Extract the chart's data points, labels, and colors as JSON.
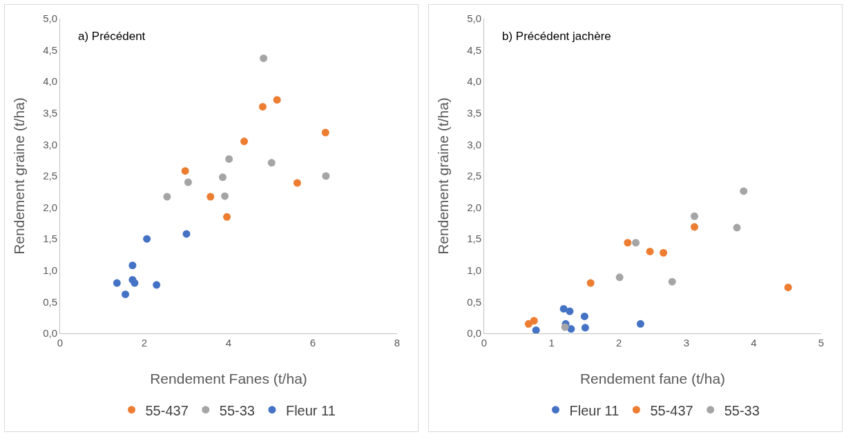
{
  "chart_data": [
    {
      "type": "scatter",
      "title": "a) Précédent",
      "xlabel": "Rendement Fanes (t/ha)",
      "ylabel": "Rendement graine (t/ha)",
      "xlim": [
        0,
        8
      ],
      "xticks": [
        0,
        2,
        4,
        6,
        8
      ],
      "ylim": [
        0,
        5
      ],
      "yticks": [
        {
          "value": 0,
          "label": "0,0"
        },
        {
          "value": 0.5,
          "label": "0,5"
        },
        {
          "value": 1,
          "label": "1,0"
        },
        {
          "value": 1.5,
          "label": "1,5"
        },
        {
          "value": 2,
          "label": "2,0"
        },
        {
          "value": 2.5,
          "label": "2,5"
        },
        {
          "value": 3,
          "label": "3,0"
        },
        {
          "value": 3.5,
          "label": "3,5"
        },
        {
          "value": 4,
          "label": "4,0"
        },
        {
          "value": 4.5,
          "label": "4,5"
        },
        {
          "value": 5,
          "label": "5,0"
        }
      ],
      "grid": false,
      "legend": "bottom",
      "marker": "circle",
      "series": [
        {
          "name": "55-437",
          "color": "#ed7d31",
          "x": [
            2.97,
            3.57,
            3.96,
            4.37,
            4.81,
            5.15,
            5.63,
            6.3
          ],
          "values": [
            2.58,
            2.17,
            1.85,
            3.05,
            3.6,
            3.71,
            2.39,
            3.19
          ]
        },
        {
          "name": "55-33",
          "color": "#a5a5a5",
          "x": [
            2.54,
            3.04,
            3.86,
            4.01,
            3.91,
            4.83,
            5.02,
            6.31
          ],
          "values": [
            2.17,
            2.4,
            2.48,
            2.77,
            2.18,
            4.37,
            2.71,
            2.5
          ]
        },
        {
          "name": "Fleur 11",
          "color": "#4472c4",
          "x": [
            2.06,
            3.0,
            1.35,
            1.55,
            1.72,
            1.72,
            1.77,
            2.29
          ],
          "values": [
            1.5,
            1.58,
            0.8,
            0.62,
            1.08,
            0.85,
            0.8,
            0.77
          ]
        }
      ]
    },
    {
      "type": "scatter",
      "title": "b) Précédent jachère",
      "xlabel": "Rendement fane (t/ha)",
      "ylabel": "Rendement graine (t/ha)",
      "xlim": [
        0,
        5
      ],
      "xticks": [
        0,
        1,
        2,
        3,
        4,
        5
      ],
      "ylim": [
        0,
        5
      ],
      "yticks": [
        {
          "value": 0,
          "label": "0,0"
        },
        {
          "value": 0.5,
          "label": "0,5"
        },
        {
          "value": 1,
          "label": "1,0"
        },
        {
          "value": 1.5,
          "label": "1,5"
        },
        {
          "value": 2,
          "label": "2,0"
        },
        {
          "value": 2.5,
          "label": "2,5"
        },
        {
          "value": 3,
          "label": "3,0"
        },
        {
          "value": 3.5,
          "label": "3,5"
        },
        {
          "value": 4,
          "label": "4,0"
        },
        {
          "value": 4.5,
          "label": "4,5"
        },
        {
          "value": 5,
          "label": "5,0"
        }
      ],
      "grid": false,
      "legend": "bottom",
      "marker": "circle",
      "series": [
        {
          "name": "Fleur 11",
          "color": "#4472c4",
          "x": [
            1.18,
            1.27,
            1.49,
            1.5,
            1.29,
            1.21,
            0.77,
            2.32
          ],
          "values": [
            0.39,
            0.35,
            0.27,
            0.09,
            0.07,
            0.15,
            0.05,
            0.15
          ]
        },
        {
          "name": "55-437",
          "color": "#ed7d31",
          "x": [
            2.13,
            3.12,
            2.46,
            2.66,
            1.58,
            4.51,
            0.66,
            0.74
          ],
          "values": [
            1.44,
            1.69,
            1.3,
            1.28,
            0.8,
            0.73,
            0.15,
            0.2
          ]
        },
        {
          "name": "55-33",
          "color": "#a5a5a5",
          "x": [
            3.85,
            3.12,
            3.75,
            2.25,
            2.01,
            2.79,
            1.2
          ],
          "values": [
            2.26,
            1.86,
            1.68,
            1.44,
            0.89,
            0.82,
            0.1
          ]
        }
      ]
    }
  ]
}
